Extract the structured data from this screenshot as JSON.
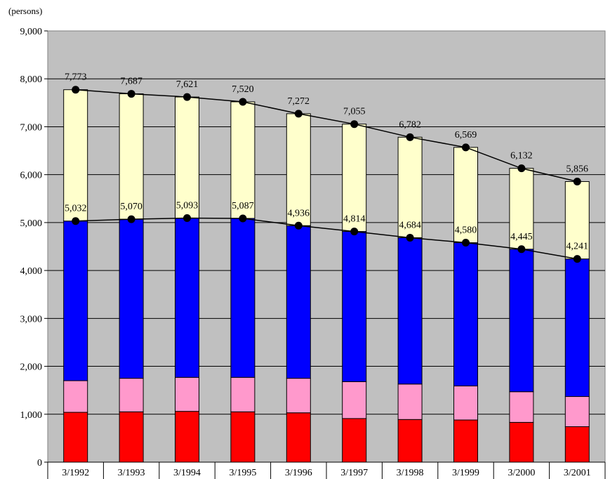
{
  "chart_data": {
    "type": "bar",
    "stacked": true,
    "y_unit_label": "(persons)",
    "categories": [
      "3/1992",
      "3/1993",
      "3/1994",
      "3/1995",
      "3/1996",
      "3/1997",
      "3/1998",
      "3/1999",
      "3/2000",
      "3/2001"
    ],
    "ylim": [
      0,
      9000
    ],
    "yticks": [
      0,
      1000,
      2000,
      3000,
      4000,
      5000,
      6000,
      7000,
      8000,
      9000
    ],
    "ytick_labels": [
      "0",
      "1,000",
      "2,000",
      "3,000",
      "4,000",
      "5,000",
      "6,000",
      "7,000",
      "8,000",
      "9,000"
    ],
    "grid": true,
    "plot_background": "#c0c0c0",
    "series": [
      {
        "color": "#ff0000",
        "values": [
          1040,
          1050,
          1060,
          1050,
          1030,
          910,
          890,
          880,
          830,
          740
        ]
      },
      {
        "color": "#ff99cc",
        "values": [
          660,
          700,
          710,
          720,
          720,
          770,
          740,
          710,
          640,
          630
        ]
      },
      {
        "color": "#0000ff",
        "values": [
          3332,
          3320,
          3323,
          3317,
          3186,
          3134,
          3054,
          2990,
          2975,
          2871
        ]
      },
      {
        "color": "#ffffcc",
        "values": [
          2741,
          2617,
          2528,
          2433,
          2336,
          2241,
          2098,
          1989,
          1687,
          1615
        ]
      }
    ],
    "line_series": [
      {
        "values": [
          7773,
          7687,
          7621,
          7520,
          7272,
          7055,
          6782,
          6569,
          6132,
          5856
        ],
        "labels": [
          "7,773",
          "7,687",
          "7,621",
          "7,520",
          "7,272",
          "7,055",
          "6,782",
          "6,569",
          "6,132",
          "5,856"
        ]
      },
      {
        "values": [
          5032,
          5070,
          5093,
          5087,
          4936,
          4814,
          4684,
          4580,
          4445,
          4241
        ],
        "labels": [
          "5,032",
          "5,070",
          "5,093",
          "5,087",
          "4,936",
          "4,814",
          "4,684",
          "4,580",
          "4,445",
          "4,241"
        ]
      }
    ]
  }
}
